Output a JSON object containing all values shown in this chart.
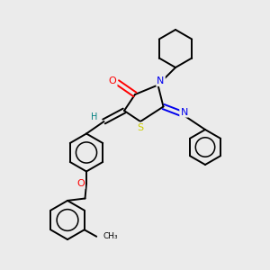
{
  "bg_color": "#ebebeb",
  "bond_color": "#000000",
  "colors": {
    "O": "#ff0000",
    "N": "#0000ee",
    "S": "#cccc00",
    "H_label": "#008080",
    "C": "#000000"
  },
  "lw": 1.4,
  "lw2": 2.8
}
